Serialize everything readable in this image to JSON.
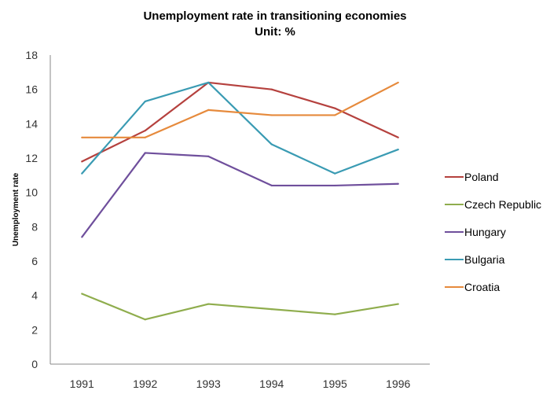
{
  "chart_data": {
    "type": "line",
    "title": "Unemployment rate in transitioning economies",
    "subtitle": "Unit: %",
    "xlabel": "",
    "ylabel": "Unemployment rate",
    "ylim": [
      0,
      18
    ],
    "yticks": [
      0,
      2,
      4,
      6,
      8,
      10,
      12,
      14,
      16,
      18
    ],
    "categories": [
      "1991",
      "1992",
      "1993",
      "1994",
      "1995",
      "1996"
    ],
    "grid": false,
    "legend": "right",
    "series": [
      {
        "name": "Poland",
        "color": "#b5413e",
        "values": [
          11.8,
          13.6,
          16.4,
          16.0,
          14.9,
          13.2
        ]
      },
      {
        "name": "Czech Republic",
        "color": "#8fad4d",
        "values": [
          4.1,
          2.6,
          3.5,
          3.2,
          2.9,
          3.5
        ]
      },
      {
        "name": " Hungary",
        "color": "#6f4f9c",
        "values": [
          7.4,
          12.3,
          12.1,
          10.4,
          10.4,
          10.5
        ]
      },
      {
        "name": "Bulgaria",
        "color": "#3a9bb3",
        "values": [
          11.1,
          15.3,
          16.4,
          12.8,
          11.1,
          12.5
        ]
      },
      {
        "name": "Croatia",
        "color": "#e68a3c",
        "values": [
          13.2,
          13.2,
          14.8,
          14.5,
          14.5,
          16.4
        ]
      }
    ]
  }
}
